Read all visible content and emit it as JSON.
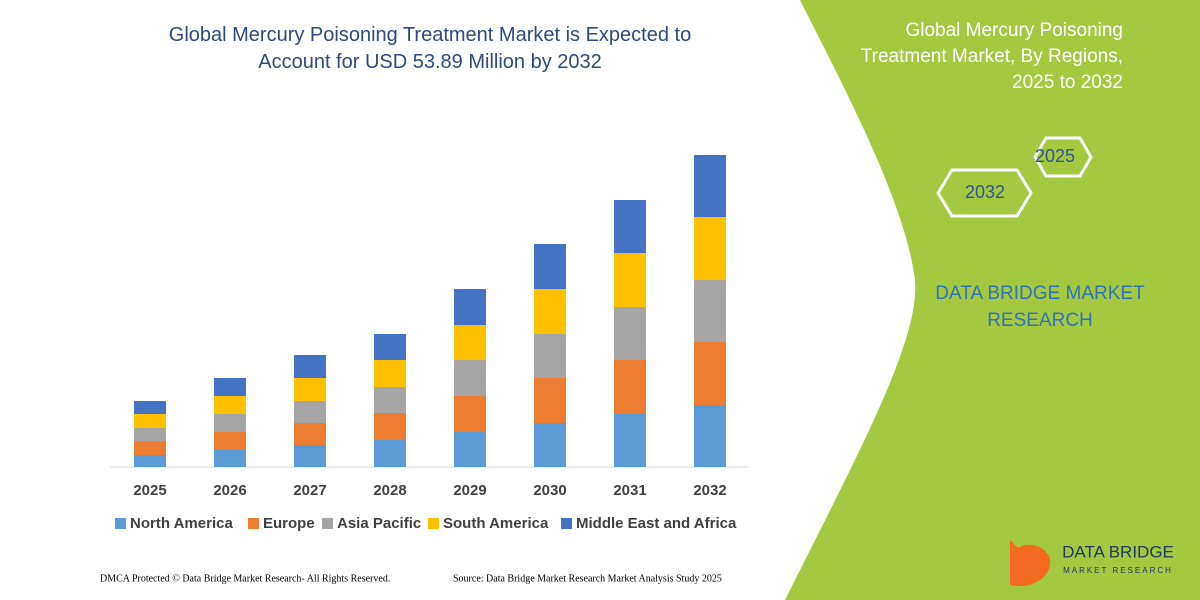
{
  "chart_data": {
    "type": "stacked_bar",
    "title": "Global Mercury Poisoning Treatment Market is Expected to Account for USD 53.89 Million by 2032",
    "categories": [
      "2025",
      "2026",
      "2027",
      "2028",
      "2029",
      "2030",
      "2031",
      "2032"
    ],
    "series": [
      {
        "name": "North America",
        "color": "#5b9bd5",
        "values": [
          12,
          17,
          22,
          27,
          35,
          44,
          53,
          62
        ]
      },
      {
        "name": "Europe",
        "color": "#ed7d31",
        "values": [
          14,
          18,
          22,
          27,
          36,
          45,
          54,
          63
        ]
      },
      {
        "name": "Asia Pacific",
        "color": "#a5a5a5",
        "values": [
          13,
          18,
          22,
          26,
          36,
          44,
          53,
          62
        ]
      },
      {
        "name": "South America",
        "color": "#ffc000",
        "values": [
          14,
          18,
          23,
          27,
          35,
          45,
          54,
          63
        ]
      },
      {
        "name": "Middle East and Africa",
        "color": "#4472c4",
        "values": [
          13,
          18,
          23,
          26,
          36,
          45,
          53,
          62
        ]
      }
    ],
    "ylim": [
      0,
      320
    ]
  },
  "panel": {
    "title": "Global Mercury Poisoning Treatment Market, By Regions, 2025 to 2032",
    "hexagons": [
      "2025",
      "2032"
    ],
    "brand": "DATA BRIDGE MARKET RESEARCH"
  },
  "logo": {
    "name": "DATA BRIDGE",
    "tagline": "MARKET RESEARCH"
  },
  "footer": {
    "left": "DMCA Protected © Data Bridge Market Research- All Rights Reserved.",
    "right": "Source: Data Bridge Market Research Market Analysis Study 2025"
  }
}
